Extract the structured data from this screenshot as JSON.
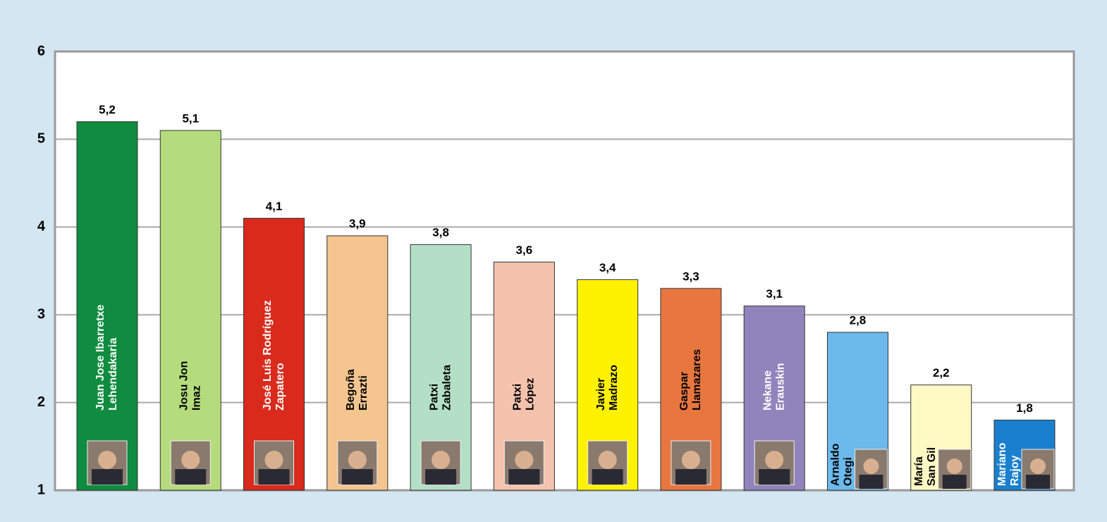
{
  "chart_data": {
    "type": "bar",
    "categories": [
      [
        "Juan Jose Ibarretxe",
        "Lehendakaria"
      ],
      [
        "Josu Jon",
        "Imaz"
      ],
      [
        "José Luis Rodríguez",
        "Zapatero"
      ],
      [
        "Begoña",
        "Errazti"
      ],
      [
        "Patxi",
        "Zabaleta"
      ],
      [
        "Patxi",
        "López"
      ],
      [
        "Javier",
        "Madrazo"
      ],
      [
        "Gaspar",
        "Llamazares"
      ],
      [
        "Nekane",
        "Erauskin"
      ],
      [
        "Arnaldo",
        "Otegi"
      ],
      [
        "María",
        "San Gil"
      ],
      [
        "Mariano",
        "Rajoy"
      ]
    ],
    "values": [
      5.2,
      5.1,
      4.1,
      3.9,
      3.8,
      3.6,
      3.4,
      3.3,
      3.1,
      2.8,
      2.2,
      1.8
    ],
    "value_labels": [
      "5,2",
      "5,1",
      "4,1",
      "3,9",
      "3,8",
      "3,6",
      "3,4",
      "3,3",
      "3,1",
      "2,8",
      "2,2",
      "1,8"
    ],
    "colors": [
      "#0f8c3f",
      "#b5dc7c",
      "#d92a1c",
      "#f4c58f",
      "#b3dfc6",
      "#f4c2ad",
      "#fff200",
      "#e8763f",
      "#9184bc",
      "#6cb9ec",
      "#fff9c4",
      "#1a7fce"
    ],
    "label_colors": [
      "#ffffff",
      "#000000",
      "#ffffff",
      "#000000",
      "#000000",
      "#000000",
      "#000000",
      "#000000",
      "#ffffff",
      "#000000",
      "#000000",
      "#ffffff"
    ],
    "ylim": [
      1,
      6
    ],
    "yticks": [
      1,
      2,
      3,
      4,
      5,
      6
    ],
    "grid": true
  }
}
